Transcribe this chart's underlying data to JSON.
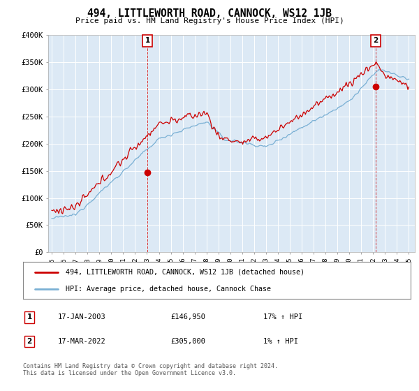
{
  "title": "494, LITTLEWORTH ROAD, CANNOCK, WS12 1JB",
  "subtitle": "Price paid vs. HM Land Registry's House Price Index (HPI)",
  "background_color": "#dce9f5",
  "plot_bg_color": "#dce9f5",
  "red_line_color": "#cc0000",
  "blue_line_color": "#7ab0d4",
  "ylim": [
    0,
    400000
  ],
  "yticks": [
    0,
    50000,
    100000,
    150000,
    200000,
    250000,
    300000,
    350000,
    400000
  ],
  "ytick_labels": [
    "£0",
    "£50K",
    "£100K",
    "£150K",
    "£200K",
    "£250K",
    "£300K",
    "£350K",
    "£400K"
  ],
  "xlim_start": 1994.7,
  "xlim_end": 2025.5,
  "sale1_x": 2003.04,
  "sale1_y": 146950,
  "sale1_label": "1",
  "sale1_date": "17-JAN-2003",
  "sale1_price": "£146,950",
  "sale1_hpi": "17% ↑ HPI",
  "sale2_x": 2022.21,
  "sale2_y": 305000,
  "sale2_label": "2",
  "sale2_date": "17-MAR-2022",
  "sale2_price": "£305,000",
  "sale2_hpi": "1% ↑ HPI",
  "legend_line1": "494, LITTLEWORTH ROAD, CANNOCK, WS12 1JB (detached house)",
  "legend_line2": "HPI: Average price, detached house, Cannock Chase",
  "footer": "Contains HM Land Registry data © Crown copyright and database right 2024.\nThis data is licensed under the Open Government Licence v3.0."
}
